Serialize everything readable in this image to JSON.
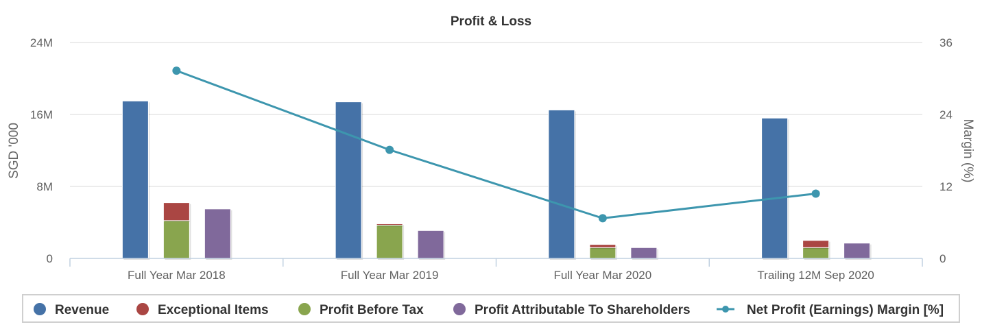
{
  "chart_data": {
    "type": "bar",
    "title": "Profit & Loss",
    "categories": [
      "Full Year Mar 2018",
      "Full Year Mar 2019",
      "Full Year Mar 2020",
      "Trailing 12M Sep 2020"
    ],
    "ylabel": "SGD '000",
    "y2label": "Margin (%)",
    "ylim": [
      0,
      24000000
    ],
    "y2lim": [
      0,
      36
    ],
    "yticks": [
      "0",
      "8M",
      "16M",
      "24M"
    ],
    "y2ticks": [
      "0",
      "12",
      "24",
      "36"
    ],
    "grid": true,
    "legend_position": "bottom",
    "series": [
      {
        "name": "Revenue",
        "type": "bar",
        "stack": "revenue",
        "color": "#4572A7",
        "values": [
          17500000,
          17400000,
          16500000,
          15600000
        ]
      },
      {
        "name": "Exceptional Items",
        "type": "bar",
        "stack": "profit",
        "color": "#AA4643",
        "values": [
          2000000,
          150000,
          350000,
          800000
        ]
      },
      {
        "name": "Profit Before Tax",
        "type": "bar",
        "stack": "profit",
        "color": "#89A54E",
        "values": [
          4200000,
          3700000,
          1200000,
          1200000
        ]
      },
      {
        "name": "Profit Attributable To Shareholders",
        "type": "bar",
        "stack": "attrib",
        "color": "#80699B",
        "values": [
          5500000,
          3100000,
          1200000,
          1700000
        ]
      },
      {
        "name": "Net Profit (Earnings) Margin [%]",
        "type": "line",
        "axis": "right",
        "color": "#3D96AE",
        "values": [
          31.3,
          18.1,
          6.7,
          10.8
        ]
      }
    ]
  }
}
